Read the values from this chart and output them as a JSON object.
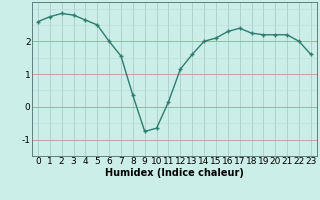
{
  "x": [
    0,
    1,
    2,
    3,
    4,
    5,
    6,
    7,
    8,
    9,
    10,
    11,
    12,
    13,
    14,
    15,
    16,
    17,
    18,
    19,
    20,
    21,
    22,
    23
  ],
  "y": [
    2.6,
    2.75,
    2.85,
    2.8,
    2.65,
    2.5,
    2.0,
    1.55,
    0.35,
    -0.75,
    -0.65,
    0.15,
    1.15,
    1.6,
    2.0,
    2.1,
    2.3,
    2.4,
    2.25,
    2.2,
    2.2,
    2.2,
    2.0,
    1.6
  ],
  "line_color": "#2e7d6e",
  "marker": "+",
  "marker_size": 3.5,
  "marker_lw": 1.0,
  "bg_color": "#cceee8",
  "grid_major_color": "#aacccc",
  "grid_minor_color": "#bbdddd",
  "hline_color": "#cc9999",
  "xlabel": "Humidex (Indice chaleur)",
  "ylim": [
    -1.5,
    3.2
  ],
  "xlim": [
    -0.5,
    23.5
  ],
  "yticks": [
    -1,
    0,
    1,
    2
  ],
  "xticks": [
    0,
    1,
    2,
    3,
    4,
    5,
    6,
    7,
    8,
    9,
    10,
    11,
    12,
    13,
    14,
    15,
    16,
    17,
    18,
    19,
    20,
    21,
    22,
    23
  ],
  "xlabel_fontsize": 7,
  "tick_fontsize": 6.5,
  "line_width": 1.0,
  "fig_width": 3.2,
  "fig_height": 2.0,
  "dpi": 100
}
